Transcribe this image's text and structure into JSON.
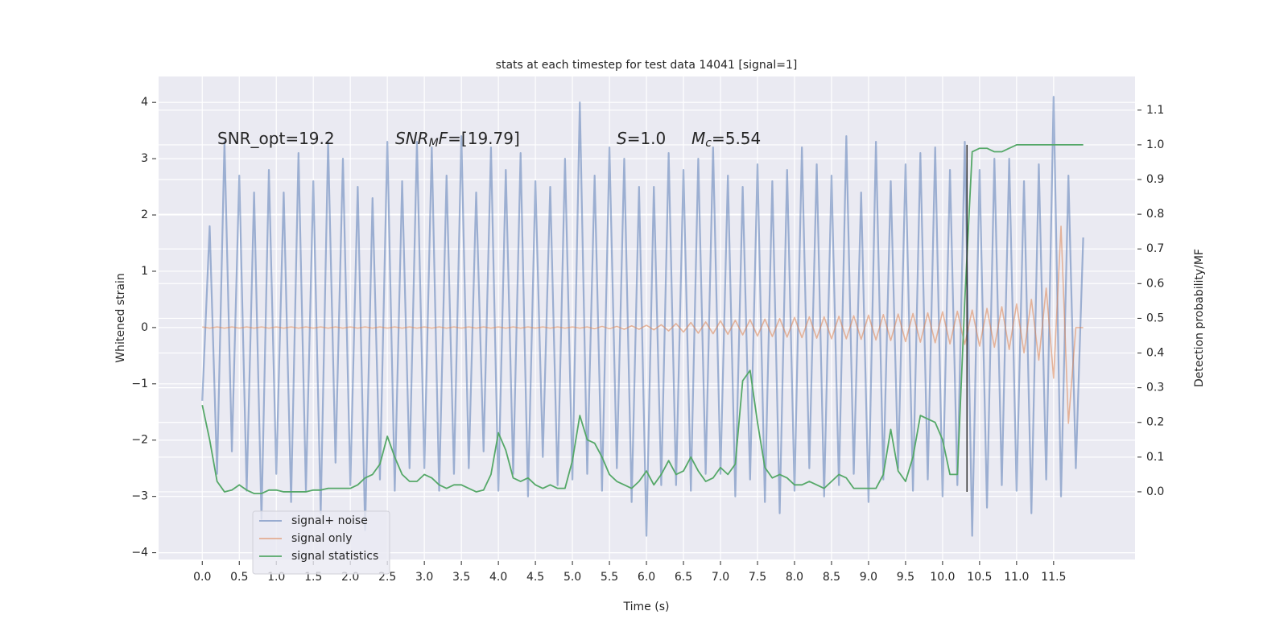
{
  "chart_data": {
    "type": "line",
    "title": "stats at each timestep for test data 14041 [signal=1]",
    "x_label": "Time (s)",
    "y_label": "Whitened strain",
    "y2_label": "Detection probability/MF",
    "x": [
      0.0,
      0.1,
      0.2,
      0.3,
      0.4,
      0.5,
      0.6,
      0.7,
      0.8,
      0.9,
      1.0,
      1.1,
      1.2,
      1.3,
      1.4,
      1.5,
      1.6,
      1.7,
      1.8,
      1.9,
      2.0,
      2.1,
      2.2,
      2.3,
      2.4,
      2.5,
      2.6,
      2.7,
      2.8,
      2.9,
      3.0,
      3.1,
      3.2,
      3.3,
      3.4,
      3.5,
      3.6,
      3.7,
      3.8,
      3.9,
      4.0,
      4.1,
      4.2,
      4.3,
      4.4,
      4.5,
      4.6,
      4.7,
      4.8,
      4.9,
      5.0,
      5.1,
      5.2,
      5.3,
      5.4,
      5.5,
      5.6,
      5.7,
      5.8,
      5.9,
      6.0,
      6.1,
      6.2,
      6.3,
      6.4,
      6.5,
      6.6,
      6.7,
      6.8,
      6.9,
      7.0,
      7.1,
      7.2,
      7.3,
      7.4,
      7.5,
      7.6,
      7.7,
      7.8,
      7.9,
      8.0,
      8.1,
      8.2,
      8.3,
      8.4,
      8.5,
      8.6,
      8.7,
      8.8,
      8.9,
      9.0,
      9.1,
      9.2,
      9.3,
      9.4,
      9.5,
      9.6,
      9.7,
      9.8,
      9.9,
      10.0,
      10.1,
      10.2,
      10.3,
      10.4,
      10.5,
      10.6,
      10.7,
      10.8,
      10.9,
      11.0,
      11.1,
      11.2,
      11.3,
      11.4,
      11.5,
      11.6,
      11.7,
      11.8,
      11.9
    ],
    "series": [
      {
        "name": "signal+ noise",
        "color": "#4c72b0",
        "values": [
          -1.3,
          1.8,
          -2.6,
          3.3,
          -2.2,
          2.7,
          -2.9,
          2.4,
          -3.4,
          2.8,
          -2.6,
          2.4,
          -3.1,
          3.1,
          -2.9,
          2.6,
          -3.3,
          3.3,
          -2.4,
          3.0,
          -2.8,
          2.5,
          -3.6,
          2.3,
          -2.7,
          3.3,
          -2.9,
          2.6,
          -2.5,
          3.3,
          -2.5,
          3.2,
          -2.9,
          2.7,
          -2.6,
          3.4,
          -2.5,
          2.4,
          -2.2,
          3.2,
          -2.9,
          2.8,
          -2.6,
          3.1,
          -3.0,
          2.6,
          -2.3,
          2.5,
          -2.8,
          3.0,
          -2.7,
          4.0,
          -2.6,
          2.7,
          -2.9,
          3.2,
          -2.5,
          3.0,
          -3.1,
          2.5,
          -3.7,
          2.5,
          -2.8,
          3.1,
          -2.8,
          2.8,
          -2.9,
          3.0,
          -2.6,
          3.2,
          -2.6,
          2.7,
          -3.0,
          2.5,
          -2.7,
          2.9,
          -3.1,
          2.6,
          -3.3,
          2.8,
          -2.9,
          3.2,
          -2.5,
          2.9,
          -3.0,
          2.7,
          -2.8,
          3.4,
          -2.6,
          2.4,
          -3.1,
          3.3,
          -2.7,
          2.6,
          -2.5,
          2.9,
          -2.9,
          3.1,
          -2.7,
          3.2,
          -3.0,
          2.8,
          -2.8,
          3.3,
          -3.7,
          2.8,
          -3.2,
          3.0,
          -2.8,
          3.0,
          -2.9,
          2.6,
          -3.3,
          2.9,
          -2.7,
          4.1,
          -3.0,
          2.7,
          -2.5,
          1.6
        ]
      },
      {
        "name": "signal only",
        "color": "#dd8452",
        "values": [
          0.01,
          -0.01,
          0.01,
          -0.01,
          0.01,
          -0.01,
          0.01,
          -0.01,
          0.01,
          -0.01,
          0.01,
          -0.01,
          0.01,
          -0.01,
          0.01,
          -0.01,
          0.01,
          -0.01,
          0.01,
          -0.01,
          0.01,
          -0.01,
          0.01,
          -0.01,
          0.01,
          -0.01,
          0.01,
          -0.01,
          0.01,
          -0.01,
          0.01,
          -0.01,
          0.01,
          -0.01,
          0.01,
          -0.01,
          0.01,
          -0.01,
          0.01,
          -0.01,
          0.01,
          -0.01,
          0.01,
          -0.01,
          0.01,
          -0.01,
          0.01,
          -0.01,
          0.01,
          -0.01,
          0.01,
          -0.01,
          0.01,
          -0.02,
          0.02,
          -0.02,
          0.02,
          -0.03,
          0.03,
          -0.03,
          0.04,
          -0.04,
          0.05,
          -0.06,
          0.07,
          -0.08,
          0.09,
          -0.1,
          0.1,
          -0.11,
          0.12,
          -0.12,
          0.13,
          -0.13,
          0.14,
          -0.15,
          0.15,
          -0.16,
          0.16,
          -0.17,
          0.18,
          -0.18,
          0.19,
          -0.19,
          0.19,
          -0.2,
          0.2,
          -0.2,
          0.21,
          -0.21,
          0.22,
          -0.22,
          0.23,
          -0.23,
          0.24,
          -0.25,
          0.25,
          -0.26,
          0.26,
          -0.27,
          0.28,
          -0.29,
          0.29,
          -0.3,
          0.31,
          -0.33,
          0.34,
          -0.35,
          0.37,
          -0.39,
          0.42,
          -0.45,
          0.5,
          -0.58,
          0.7,
          -0.9,
          1.8,
          -1.7,
          0,
          0
        ]
      },
      {
        "name": "signal statistics",
        "color": "#55a868",
        "axis": "y2",
        "values": [
          0.25,
          0.15,
          0.03,
          0.0,
          0.005,
          0.02,
          0.005,
          -0.005,
          -0.005,
          0.005,
          0.005,
          0.0,
          0.0,
          0.0,
          0.0,
          0.005,
          0.005,
          0.01,
          0.01,
          0.01,
          0.01,
          0.02,
          0.04,
          0.05,
          0.08,
          0.16,
          0.1,
          0.05,
          0.03,
          0.03,
          0.05,
          0.04,
          0.02,
          0.01,
          0.02,
          0.02,
          0.01,
          0.0,
          0.005,
          0.05,
          0.17,
          0.12,
          0.04,
          0.03,
          0.04,
          0.02,
          0.01,
          0.02,
          0.01,
          0.01,
          0.09,
          0.22,
          0.15,
          0.14,
          0.1,
          0.05,
          0.03,
          0.02,
          0.01,
          0.03,
          0.06,
          0.02,
          0.05,
          0.09,
          0.05,
          0.06,
          0.1,
          0.06,
          0.03,
          0.04,
          0.07,
          0.05,
          0.08,
          0.32,
          0.35,
          0.2,
          0.07,
          0.04,
          0.05,
          0.04,
          0.02,
          0.02,
          0.03,
          0.02,
          0.01,
          0.03,
          0.05,
          0.04,
          0.01,
          0.01,
          0.01,
          0.01,
          0.05,
          0.18,
          0.06,
          0.03,
          0.1,
          0.22,
          0.21,
          0.2,
          0.15,
          0.05,
          0.05,
          0.55,
          0.98,
          0.99,
          0.99,
          0.98,
          0.98,
          0.99,
          1.0,
          1.0,
          1.0,
          1.0,
          1.0,
          1.0,
          1.0,
          1.0,
          1.0,
          1.0
        ]
      }
    ],
    "vline": {
      "x": 10.33,
      "ymin": 0.0,
      "ymax": 1.0,
      "axis": "y2",
      "color": "#333333"
    },
    "annotations": [
      {
        "parts": [
          {
            "text": "SNR_opt=19.2",
            "style": "normal"
          }
        ]
      },
      {
        "parts": [
          {
            "text": "SNR",
            "style": "italic"
          },
          {
            "text": "M",
            "style": "sub"
          },
          {
            "text": "F",
            "style": "italic"
          },
          {
            "text": "=[19.79]",
            "style": "normal"
          }
        ]
      },
      {
        "parts": [
          {
            "text": "S",
            "style": "italic"
          },
          {
            "text": "=1.0",
            "style": "normal"
          }
        ]
      },
      {
        "parts": [
          {
            "text": "M",
            "style": "italic"
          },
          {
            "text": "c",
            "style": "sub"
          },
          {
            "text": "=5.54",
            "style": "normal"
          }
        ]
      }
    ],
    "xlim": [
      -0.59,
      12.6
    ],
    "xticks": [
      {
        "value": 0,
        "label": "0.0"
      },
      0.5,
      {
        "value": 1,
        "label": "1.0"
      },
      1.5,
      {
        "value": 2,
        "label": "2.0"
      },
      2.5,
      {
        "value": 3,
        "label": "3.0"
      },
      3.5,
      {
        "value": 4,
        "label": "4.0"
      },
      4.5,
      {
        "value": 5,
        "label": "5.0"
      },
      5.5,
      {
        "value": 6,
        "label": "6.0"
      },
      6.5,
      {
        "value": 7,
        "label": "7.0"
      },
      7.5,
      {
        "value": 8,
        "label": "8.0"
      },
      8.5,
      {
        "value": 9,
        "label": "9.0"
      },
      9.5,
      {
        "value": 10,
        "label": "10.0"
      },
      10.5,
      {
        "value": 11,
        "label": "11.0"
      },
      11.5
    ],
    "ylim": [
      -4.12,
      4.46
    ],
    "yticks": [
      {
        "value": -4,
        "label": "−4"
      },
      {
        "value": -3,
        "label": "−3"
      },
      {
        "value": -2,
        "label": "−2"
      },
      {
        "value": -1,
        "label": "−1"
      },
      0,
      1,
      2,
      3,
      4
    ],
    "y2lim": [
      -0.195,
      1.197
    ],
    "y2ticks": [
      {
        "value": 0,
        "label": "0.0"
      },
      0.1,
      0.2,
      0.3,
      0.4,
      0.5,
      0.6,
      0.7,
      0.8,
      0.9,
      {
        "value": 1,
        "label": "1.0"
      },
      1.1
    ],
    "grid": true,
    "legend": "lower left"
  }
}
